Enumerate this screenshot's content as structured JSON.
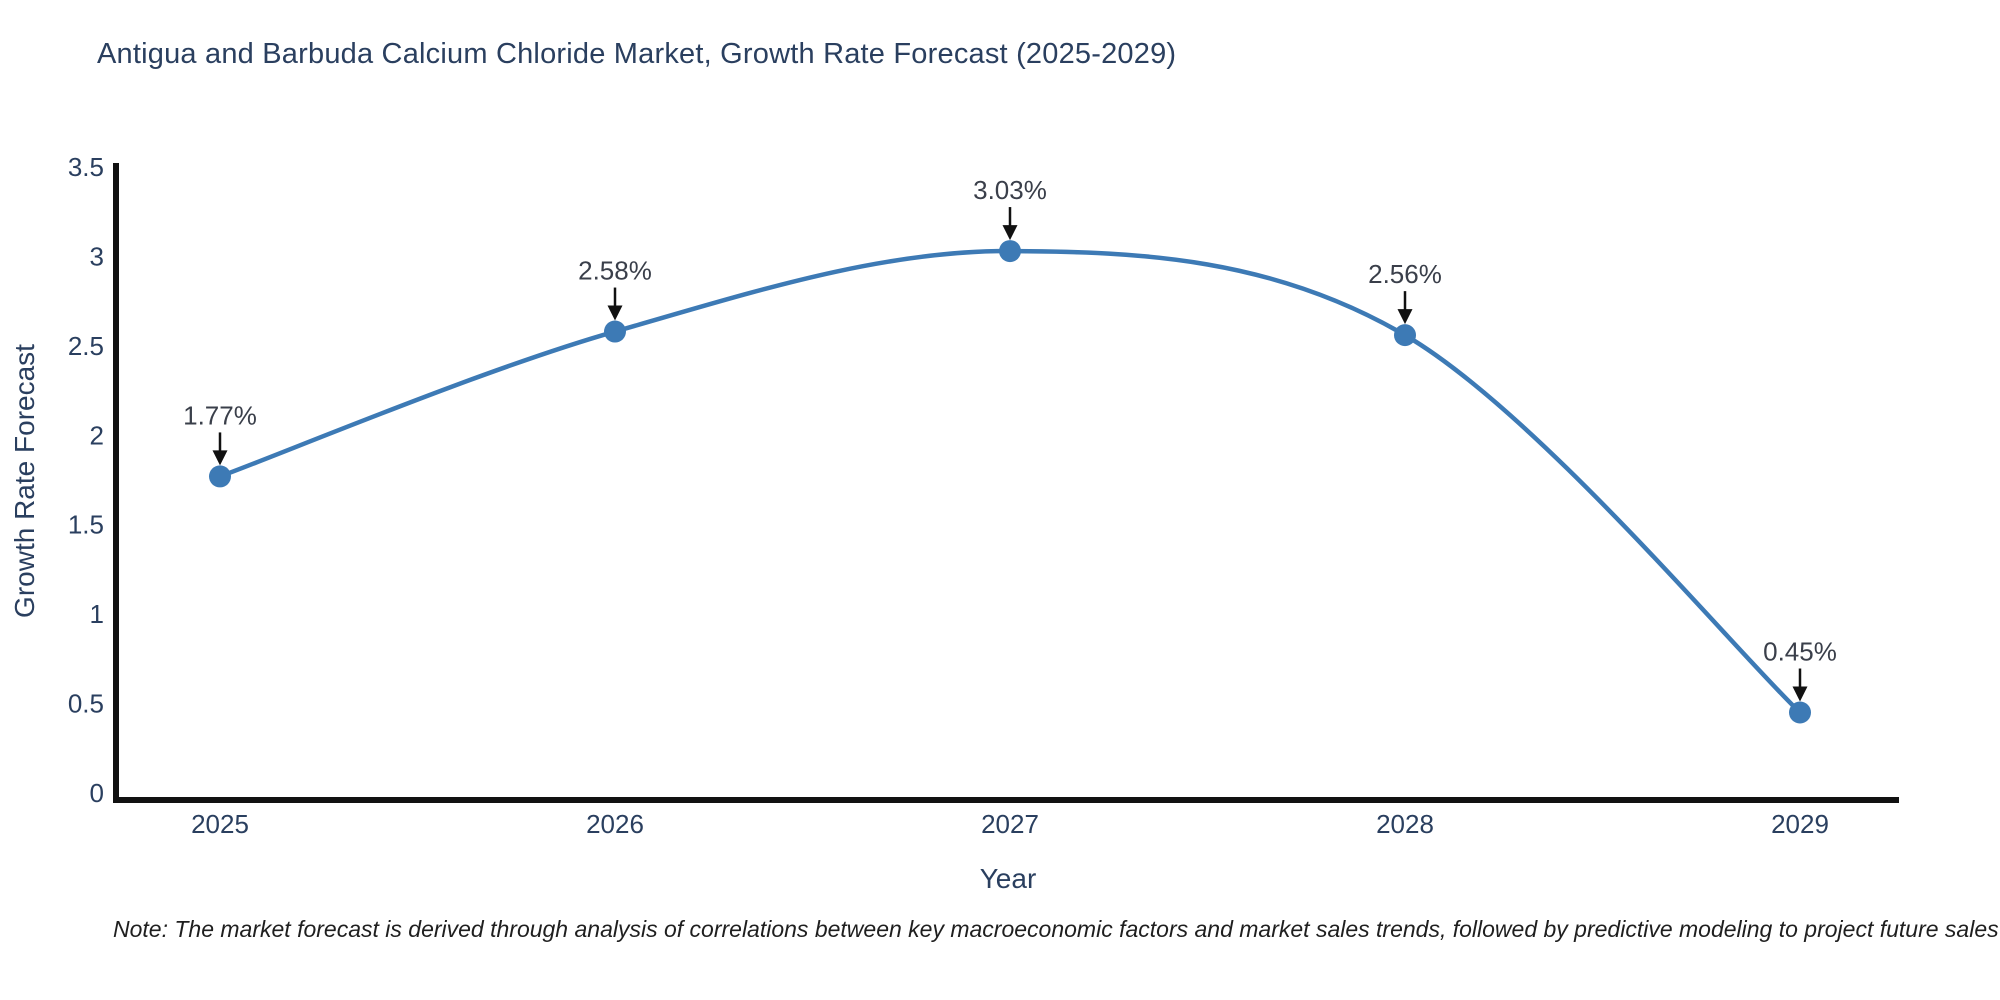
{
  "chart_data": {
    "type": "line",
    "title": "Antigua and Barbuda Calcium Chloride Market, Growth Rate Forecast (2025-2029)",
    "xlabel": "Year",
    "ylabel": "Growth Rate Forecast",
    "x": [
      2025,
      2026,
      2027,
      2028,
      2029
    ],
    "y": [
      1.77,
      2.58,
      3.03,
      2.56,
      0.45
    ],
    "point_labels": [
      "1.77%",
      "2.58%",
      "3.03%",
      "2.56%",
      "0.45%"
    ],
    "yticks": [
      0,
      0.5,
      1,
      1.5,
      2,
      2.5,
      3,
      3.5
    ],
    "ylim": [
      0,
      3.5
    ],
    "line_shape": "spline",
    "grid": false,
    "legend": "none",
    "colors": {
      "line": "#3d7ab5",
      "marker": "#3d7ab5",
      "axis": "#111111",
      "title": "#2a3f5f",
      "tick": "#2a3f5f",
      "axis_label": "#2a3f5f",
      "annotation": "#3a3f4a",
      "arrow": "#111111",
      "background": "#ffffff"
    }
  },
  "note": {
    "text": "Note: The market forecast is derived through analysis of correlations between key macroeconomic factors and market sales trends, followed by predictive modeling to project future sales"
  }
}
